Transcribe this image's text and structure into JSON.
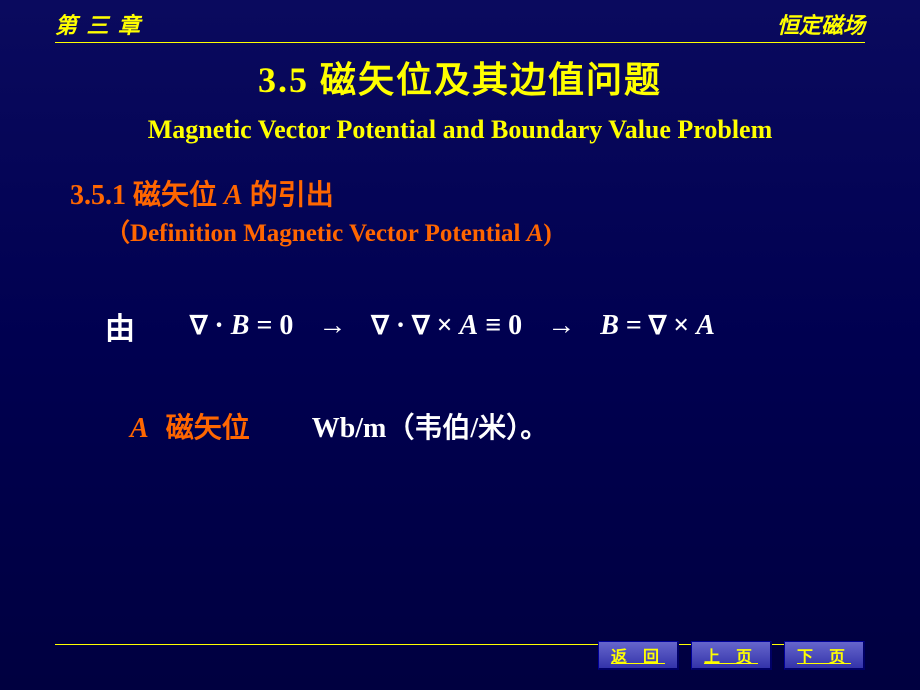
{
  "header": {
    "left": "第 三 章",
    "right": "恒定磁场"
  },
  "title": {
    "main": "3.5  磁矢位及其边值问题",
    "sub": "Magnetic Vector Potential and Boundary Value Problem"
  },
  "section": {
    "number": "3.5.1",
    "titlePrefix": "磁矢位",
    "titleVar": "A",
    "titleSuffix": "的引出",
    "subParenOpen": "（",
    "subEn": "Definition Magnetic Vector Potential ",
    "subVar": "A",
    "subParenClose": ")"
  },
  "equation": {
    "prefix": "由",
    "part1_nabla": "∇",
    "part1_dot": " · ",
    "part1_var": "B",
    "part1_eq": " = 0",
    "arrow1": "→",
    "part2_nabla1": "∇",
    "part2_dot": " · ",
    "part2_nabla2": "∇",
    "part2_cross": " × ",
    "part2_var": "A",
    "part2_eq": " ≡ 0",
    "arrow2": "→",
    "part3_varB": "B",
    "part3_eq": " = ",
    "part3_nabla": "∇",
    "part3_cross": " × ",
    "part3_varA": "A"
  },
  "unit": {
    "var": "A",
    "label": "磁矢位",
    "unitEn": "Wb/m",
    "unitCnOpen": "（",
    "unitCn": "韦伯/米",
    "unitCnClose": "）。"
  },
  "nav": {
    "back": "返 回",
    "prev": "上 页",
    "next": "下 页"
  },
  "colors": {
    "accent": "#ffff00",
    "highlight": "#ff6600",
    "text": "#ffffff",
    "bgTop": "#0a0a5e",
    "bgBottom": "#000040"
  }
}
